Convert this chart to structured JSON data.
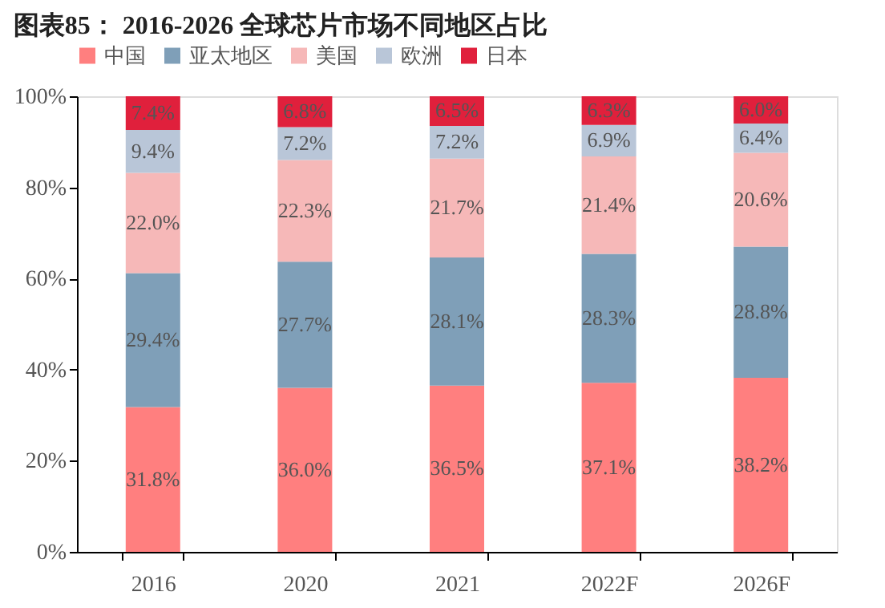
{
  "chart_data": {
    "type": "bar",
    "title": "图表85：   2016-2026 全球芯片市场不同地区占比",
    "stacked": true,
    "legend": "top",
    "categories": [
      "2016",
      "2020",
      "2021",
      "2022F",
      "2026F"
    ],
    "series": [
      {
        "name": "中国",
        "color": "#ff7f7f",
        "values": [
          31.8,
          36.0,
          36.5,
          37.1,
          38.2
        ],
        "value_labels": [
          "31.8%",
          "36.0%",
          "36.5%",
          "37.1%",
          "38.2%"
        ]
      },
      {
        "name": "亚太地区",
        "color": "#7f9fb8",
        "values": [
          29.4,
          27.7,
          28.1,
          28.3,
          28.8
        ],
        "value_labels": [
          "29.4%",
          "27.7%",
          "28.1%",
          "28.3%",
          "28.8%"
        ]
      },
      {
        "name": "美国",
        "color": "#f6b8b8",
        "values": [
          22.0,
          22.3,
          21.7,
          21.4,
          20.6
        ],
        "value_labels": [
          "22.0%",
          "22.3%",
          "21.7%",
          "21.4%",
          "20.6%"
        ]
      },
      {
        "name": "欧洲",
        "color": "#b9c6d8",
        "values": [
          9.4,
          7.2,
          7.2,
          6.9,
          6.4
        ],
        "value_labels": [
          "9.4%",
          "7.2%",
          "7.2%",
          "6.9%",
          "6.4%"
        ]
      },
      {
        "name": "日本",
        "color": "#e0203c",
        "values": [
          7.4,
          6.8,
          6.5,
          6.3,
          6.0
        ],
        "value_labels": [
          "7.4%",
          "6.8%",
          "6.5%",
          "6.3%",
          "6.0%"
        ]
      }
    ],
    "ylim": [
      0,
      100
    ],
    "yticks": [
      {
        "value": 0,
        "label": "0%"
      },
      {
        "value": 20,
        "label": "20%"
      },
      {
        "value": 40,
        "label": "40%"
      },
      {
        "value": 60,
        "label": "60%"
      },
      {
        "value": 80,
        "label": "80%"
      },
      {
        "value": 100,
        "label": "100%"
      }
    ],
    "grid": false
  }
}
